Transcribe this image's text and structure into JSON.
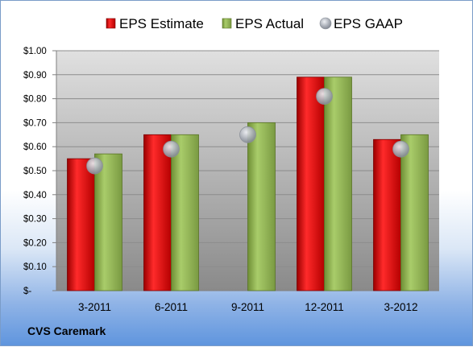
{
  "footer": {
    "company": "CVS Caremark"
  },
  "colors": {
    "estimate": "#c00000",
    "actual": "#8db04f",
    "gaap": "#b7bcc4"
  },
  "chart_data": {
    "type": "bar",
    "categories": [
      "3-2011",
      "6-2011",
      "9-2011",
      "12-2011",
      "3-2012"
    ],
    "series": [
      {
        "name": "EPS Estimate",
        "kind": "bar",
        "values": [
          0.55,
          0.65,
          null,
          0.89,
          0.63
        ]
      },
      {
        "name": "EPS Actual",
        "kind": "bar",
        "values": [
          0.57,
          0.65,
          0.7,
          0.89,
          0.65
        ]
      },
      {
        "name": "EPS GAAP",
        "kind": "marker",
        "values": [
          0.52,
          0.59,
          0.65,
          0.81,
          0.59
        ]
      }
    ],
    "ylim": [
      0,
      1.0
    ],
    "yticks": [
      0,
      0.1,
      0.2,
      0.3,
      0.4,
      0.5,
      0.6,
      0.7,
      0.8,
      0.9,
      1.0
    ],
    "ytick_labels": [
      "$-",
      "$0.10",
      "$0.20",
      "$0.30",
      "$0.40",
      "$0.50",
      "$0.60",
      "$0.70",
      "$0.80",
      "$0.90",
      "$1.00"
    ],
    "legend": "top",
    "grid": true
  }
}
